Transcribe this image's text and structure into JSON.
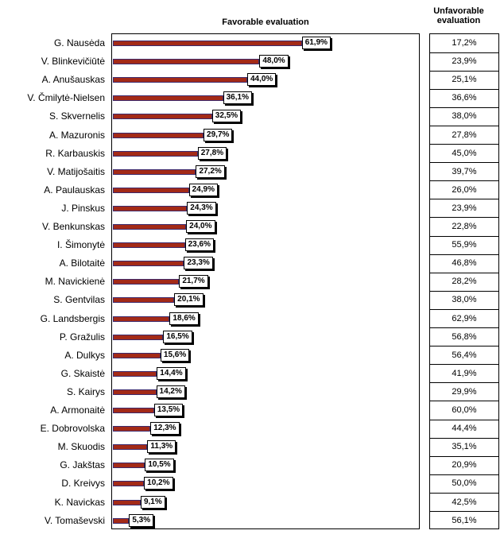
{
  "chart_data": {
    "type": "bar",
    "orientation": "horizontal",
    "headers": {
      "favorable": "Favorable evaluation",
      "unfavorable": "Unfavorable evaluation"
    },
    "xlim": [
      0,
      70
    ],
    "grid": false,
    "categories": [
      "G. Nausėda",
      "V. Blinkevičiūtė",
      "A. Anušauskas",
      "V. Čmilytė-Nielsen",
      "S. Skvernelis",
      "A. Mazuronis",
      "R. Karbauskis",
      "V. Matijošaitis",
      "A. Paulauskas",
      "J. Pinskus",
      "V. Benkunskas",
      "I. Šimonytė",
      "A. Bilotaitė",
      "M. Navickienė",
      "S. Gentvilas",
      "G. Landsbergis",
      "P. Gražulis",
      "A. Dulkys",
      "G. Skaistė",
      "S. Kairys",
      "A. Armonaitė",
      "E. Dobrovolska",
      "M. Skuodis",
      "G. Jakštas",
      "D. Kreivys",
      "K. Navickas",
      "V. Tomaševski"
    ],
    "series": [
      {
        "name": "Favorable evaluation",
        "values": [
          61.9,
          48.0,
          44.0,
          36.1,
          32.5,
          29.7,
          27.8,
          27.2,
          24.9,
          24.3,
          24.0,
          23.6,
          23.3,
          21.7,
          20.1,
          18.6,
          16.5,
          15.6,
          14.4,
          14.2,
          13.5,
          12.3,
          11.3,
          10.5,
          10.2,
          9.1,
          5.3
        ],
        "labels": [
          "61,9%",
          "48,0%",
          "44,0%",
          "36,1%",
          "32,5%",
          "29,7%",
          "27,8%",
          "27,2%",
          "24,9%",
          "24,3%",
          "24,0%",
          "23,6%",
          "23,3%",
          "21,7%",
          "20,1%",
          "18,6%",
          "16,5%",
          "15,6%",
          "14,4%",
          "14,2%",
          "13,5%",
          "12,3%",
          "11,3%",
          "10,5%",
          "10,2%",
          "9,1%",
          "5,3%"
        ]
      },
      {
        "name": "Unfavorable evaluation",
        "values": [
          17.2,
          23.9,
          25.1,
          36.6,
          38.0,
          27.8,
          45.0,
          39.7,
          26.0,
          23.9,
          22.8,
          55.9,
          46.8,
          28.2,
          38.0,
          62.9,
          56.8,
          56.4,
          41.9,
          29.9,
          60.0,
          44.4,
          35.1,
          20.9,
          50.0,
          42.5,
          56.1
        ],
        "labels": [
          "17,2%",
          "23,9%",
          "25,1%",
          "36,6%",
          "38,0%",
          "27,8%",
          "45,0%",
          "39,7%",
          "26,0%",
          "23,9%",
          "22,8%",
          "55,9%",
          "46,8%",
          "28,2%",
          "38,0%",
          "62,9%",
          "56,8%",
          "56,4%",
          "41,9%",
          "29,9%",
          "60,0%",
          "44,4%",
          "35,1%",
          "20,9%",
          "50,0%",
          "42,5%",
          "56,1%"
        ]
      }
    ],
    "colors": {
      "bar_fill": "#a32a17",
      "bar_edge": "#3c2a6e"
    }
  }
}
